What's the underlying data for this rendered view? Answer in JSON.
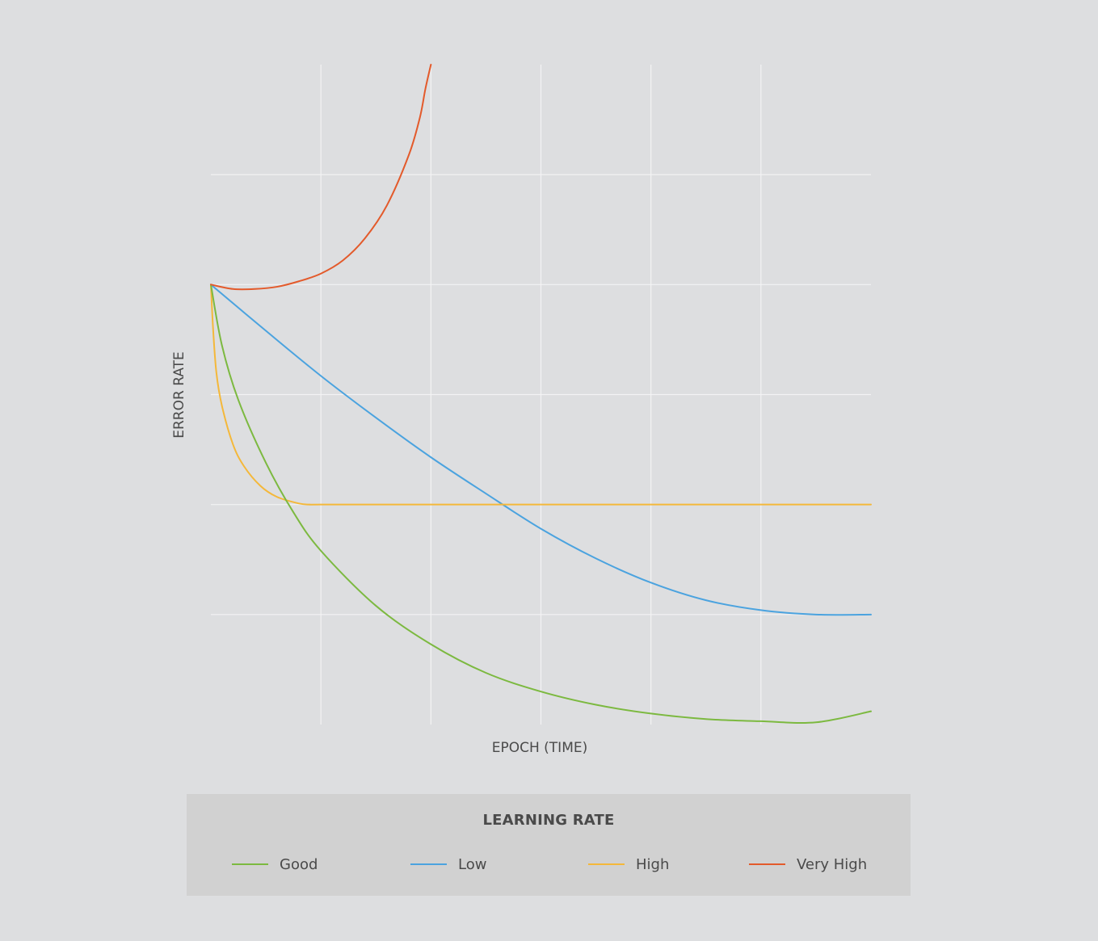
{
  "chart_data": {
    "type": "line",
    "xlabel": "EPOCH (TIME)",
    "ylabel": "ERROR RATE",
    "xlim": [
      0,
      6
    ],
    "ylim": [
      0,
      6
    ],
    "grid": true,
    "legend_title": "LEARNING RATE",
    "legend_position": "bottom",
    "series": [
      {
        "name": "Good",
        "color": "#7cb940",
        "x": [
          0,
          0.1,
          0.25,
          0.5,
          0.75,
          1.0,
          1.5,
          2.0,
          2.5,
          3.0,
          3.5,
          4.0,
          4.5,
          5.0,
          5.5,
          6.0
        ],
        "y": [
          4.0,
          3.45,
          2.95,
          2.38,
          1.93,
          1.58,
          1.08,
          0.73,
          0.47,
          0.3,
          0.18,
          0.1,
          0.05,
          0.03,
          0.02,
          0.12
        ]
      },
      {
        "name": "Low",
        "color": "#4ba3df",
        "x": [
          0,
          0.5,
          1.0,
          1.5,
          2.0,
          2.5,
          3.0,
          3.5,
          4.0,
          4.5,
          5.0,
          5.5,
          6.0
        ],
        "y": [
          4.0,
          3.58,
          3.17,
          2.79,
          2.43,
          2.1,
          1.78,
          1.51,
          1.29,
          1.13,
          1.04,
          1.0,
          1.0
        ]
      },
      {
        "name": "High",
        "color": "#f4b83a",
        "x": [
          0,
          0.02,
          0.05,
          0.1,
          0.2,
          0.3,
          0.45,
          0.6,
          0.8,
          0.9,
          1.0,
          2.0,
          3.0,
          4.0,
          5.0,
          6.0
        ],
        "y": [
          4.0,
          3.6,
          3.2,
          2.9,
          2.55,
          2.35,
          2.17,
          2.07,
          2.01,
          2.0,
          2.0,
          2.0,
          2.0,
          2.0,
          2.0,
          2.0
        ]
      },
      {
        "name": "Very High",
        "color": "#e35a2b",
        "x": [
          0,
          0.2,
          0.4,
          0.6,
          0.8,
          1.0,
          1.2,
          1.4,
          1.6,
          1.8,
          1.9,
          1.95,
          2.0
        ],
        "y": [
          4.0,
          3.96,
          3.96,
          3.98,
          4.03,
          4.1,
          4.22,
          4.42,
          4.72,
          5.18,
          5.52,
          5.78,
          6.0
        ]
      }
    ]
  }
}
